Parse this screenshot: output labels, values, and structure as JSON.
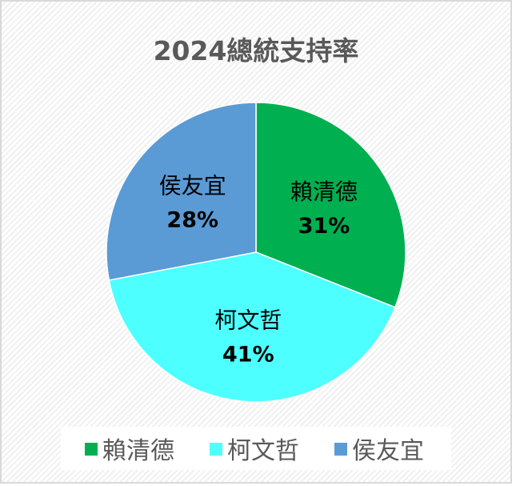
{
  "chart_data": {
    "type": "pie",
    "title": "2024總統支持率",
    "categories": [
      "賴清德",
      "柯文哲",
      "侯友宜"
    ],
    "values": [
      31,
      41,
      28
    ],
    "value_labels": [
      "31%",
      "41%",
      "28%"
    ],
    "colors": [
      "#00b050",
      "#4dffff",
      "#5b9bd5"
    ],
    "start_angle": "12 o'clock",
    "direction": "clockwise",
    "legend": "bottom"
  }
}
